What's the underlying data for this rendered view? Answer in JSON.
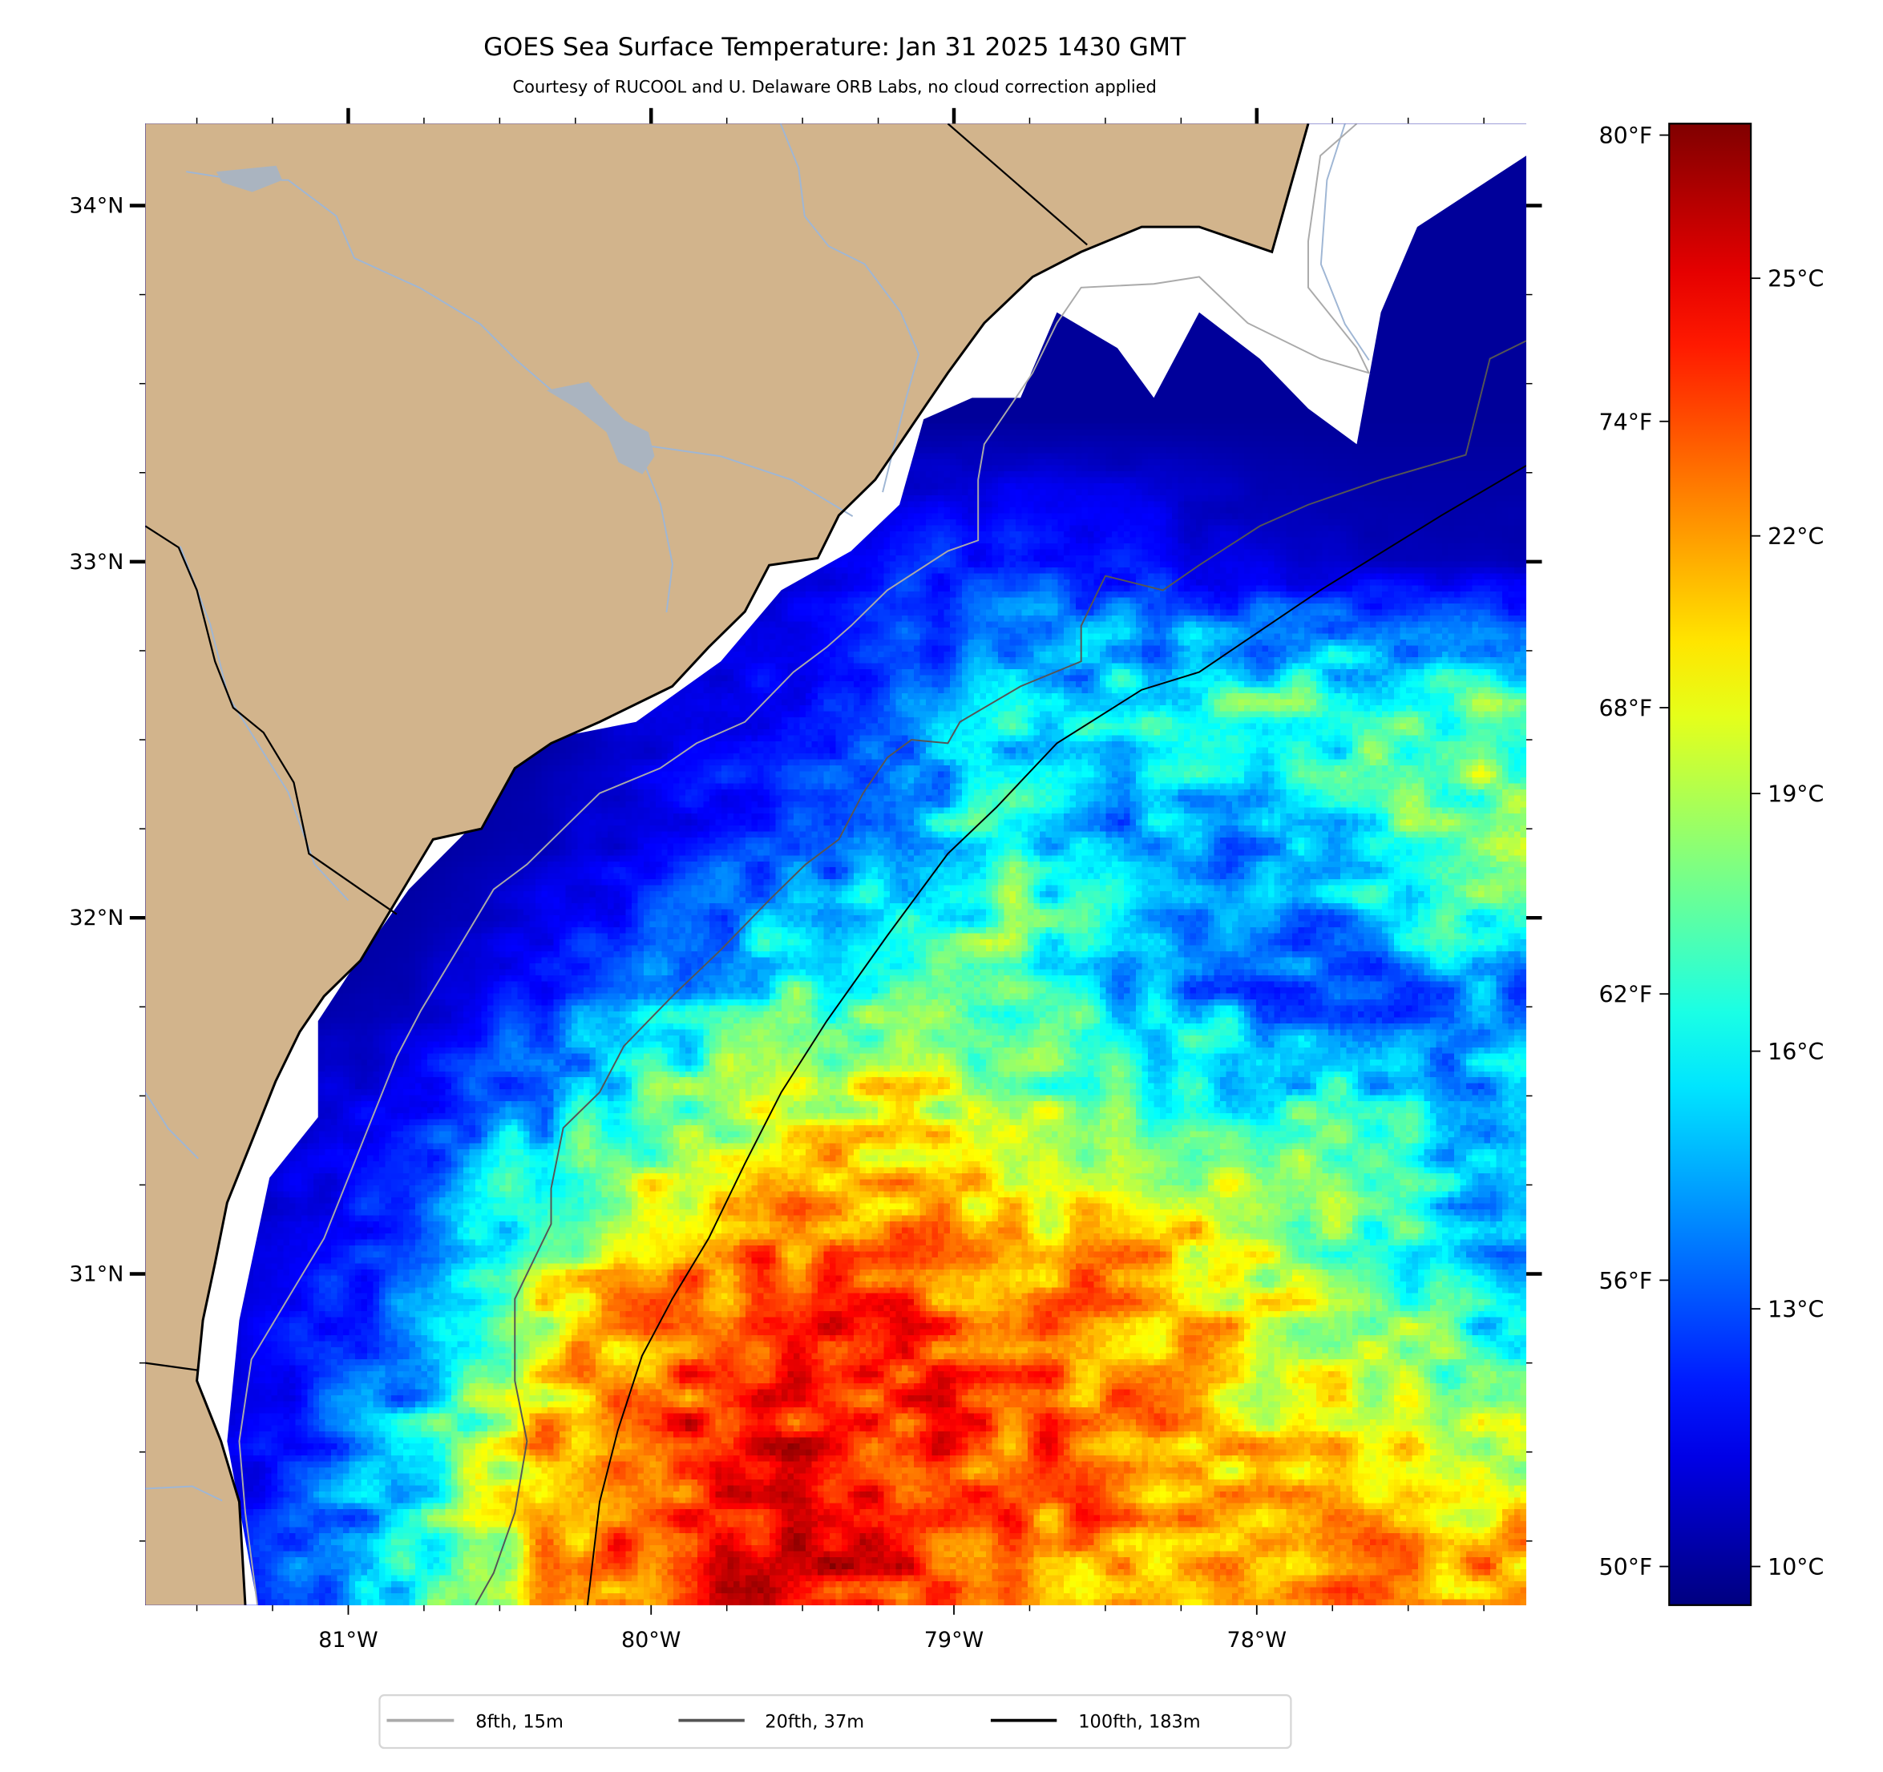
{
  "chart_data": {
    "type": "heatmap",
    "title": "GOES Sea Surface Temperature: Jan 31 2025 1430 GMT",
    "subtitle": "Courtesy of RUCOOL and U. Delaware ORB Labs, no cloud correction applied",
    "xlim": [
      -81.67,
      -77.11
    ],
    "ylim": [
      30.07,
      34.23
    ],
    "x_ticks": [
      {
        "value": -81,
        "label": "81°W"
      },
      {
        "value": -80,
        "label": "80°W"
      },
      {
        "value": -79,
        "label": "79°W"
      },
      {
        "value": -78,
        "label": "78°W"
      }
    ],
    "y_ticks": [
      {
        "value": 34,
        "label": "34°N"
      },
      {
        "value": 33,
        "label": "33°N"
      },
      {
        "value": 32,
        "label": "32°N"
      },
      {
        "value": 31,
        "label": "31°N"
      }
    ],
    "colorbar": {
      "colormap": "jet",
      "range_c": [
        9.55,
        26.8
      ],
      "ticks_f": [
        {
          "value": 80,
          "label": "80°F"
        },
        {
          "value": 74,
          "label": "74°F"
        },
        {
          "value": 68,
          "label": "68°F"
        },
        {
          "value": 62,
          "label": "62°F"
        },
        {
          "value": 56,
          "label": "56°F"
        },
        {
          "value": 50,
          "label": "50°F"
        }
      ],
      "ticks_c": [
        {
          "value": 25,
          "label": "25°C"
        },
        {
          "value": 22,
          "label": "22°C"
        },
        {
          "value": 19,
          "label": "19°C"
        },
        {
          "value": 16,
          "label": "16°C"
        },
        {
          "value": 13,
          "label": "13°C"
        },
        {
          "value": 10,
          "label": "10°C"
        }
      ]
    },
    "grid": {
      "lons": [
        -81.6,
        -81.2,
        -80.8,
        -80.4,
        -80.0,
        -79.6,
        -79.2,
        -78.8,
        -78.4,
        -78.0,
        -77.6,
        -77.2
      ],
      "lats": [
        34.2,
        33.8,
        33.4,
        33.0,
        32.6,
        32.2,
        31.8,
        31.4,
        31.0,
        30.6,
        30.2
      ],
      "sst_c": [
        [
          10,
          10,
          10,
          10,
          10,
          10,
          10,
          10,
          10,
          10,
          10,
          10
        ],
        [
          10,
          10,
          10,
          10,
          10,
          10,
          10,
          10,
          10,
          10,
          10,
          10
        ],
        [
          10,
          10,
          10,
          10,
          10,
          10,
          10,
          10,
          10,
          10,
          10,
          10
        ],
        [
          10,
          10,
          10,
          10,
          10,
          10.5,
          12,
          12.5,
          12,
          11,
          10.5,
          10.5
        ],
        [
          10,
          10,
          10,
          10,
          11,
          12,
          13,
          15,
          16.5,
          17,
          17,
          17.5
        ],
        [
          10,
          10,
          10,
          10.5,
          11.5,
          13,
          15,
          17,
          14,
          14,
          17,
          19
        ],
        [
          10,
          10,
          10.5,
          12,
          14,
          16.5,
          17.5,
          18,
          15,
          13.5,
          13,
          14
        ],
        [
          10,
          11,
          12,
          15,
          18,
          20,
          21,
          19,
          18,
          17.5,
          17,
          15
        ],
        [
          10,
          11.5,
          13,
          19,
          22,
          23.5,
          23,
          22,
          22,
          20,
          18,
          14
        ],
        [
          10,
          12,
          15,
          21,
          23.5,
          24.5,
          24,
          23.5,
          22,
          21,
          20,
          18
        ],
        [
          10,
          13,
          16,
          21,
          23.5,
          25,
          24,
          23,
          22,
          21.5,
          22,
          22
        ]
      ]
    },
    "land_polygon": [
      [
        -77.83,
        34.23
      ],
      [
        -77.95,
        33.87
      ],
      [
        -78.19,
        33.94
      ],
      [
        -78.38,
        33.94
      ],
      [
        -78.58,
        33.87
      ],
      [
        -78.74,
        33.8
      ],
      [
        -78.9,
        33.67
      ],
      [
        -79.02,
        33.53
      ],
      [
        -79.1,
        33.43
      ],
      [
        -79.18,
        33.33
      ],
      [
        -79.26,
        33.23
      ],
      [
        -79.38,
        33.13
      ],
      [
        -79.45,
        33.01
      ],
      [
        -79.61,
        32.99
      ],
      [
        -79.69,
        32.86
      ],
      [
        -79.81,
        32.76
      ],
      [
        -79.93,
        32.65
      ],
      [
        -80.17,
        32.55
      ],
      [
        -80.33,
        32.49
      ],
      [
        -80.45,
        32.42
      ],
      [
        -80.56,
        32.25
      ],
      [
        -80.72,
        32.22
      ],
      [
        -80.84,
        32.05
      ],
      [
        -80.96,
        31.88
      ],
      [
        -81.08,
        31.78
      ],
      [
        -81.16,
        31.68
      ],
      [
        -81.24,
        31.54
      ],
      [
        -81.32,
        31.37
      ],
      [
        -81.4,
        31.2
      ],
      [
        -81.44,
        31.03
      ],
      [
        -81.48,
        30.87
      ],
      [
        -81.5,
        30.7
      ],
      [
        -81.42,
        30.53
      ],
      [
        -81.36,
        30.36
      ],
      [
        -81.34,
        30.07
      ],
      [
        -81.67,
        30.07
      ],
      [
        -81.67,
        34.23
      ]
    ],
    "cloud_polygon": [
      [
        -81.3,
        30.07
      ],
      [
        -81.4,
        30.53
      ],
      [
        -81.36,
        30.87
      ],
      [
        -81.26,
        31.27
      ],
      [
        -81.1,
        31.44
      ],
      [
        -81.1,
        31.71
      ],
      [
        -81.0,
        31.84
      ],
      [
        -80.8,
        32.08
      ],
      [
        -80.6,
        32.25
      ],
      [
        -80.41,
        32.49
      ],
      [
        -80.05,
        32.55
      ],
      [
        -79.77,
        32.72
      ],
      [
        -79.57,
        32.92
      ],
      [
        -79.34,
        33.03
      ],
      [
        -79.18,
        33.16
      ],
      [
        -79.1,
        33.4
      ],
      [
        -78.94,
        33.46
      ],
      [
        -78.78,
        33.46
      ],
      [
        -78.66,
        33.7
      ],
      [
        -78.46,
        33.6
      ],
      [
        -78.34,
        33.46
      ],
      [
        -78.19,
        33.7
      ],
      [
        -77.99,
        33.57
      ],
      [
        -77.83,
        33.43
      ],
      [
        -77.67,
        33.33
      ],
      [
        -77.59,
        33.7
      ],
      [
        -77.47,
        33.94
      ],
      [
        -77.11,
        34.14
      ],
      [
        -77.11,
        34.23
      ],
      [
        -81.67,
        34.23
      ],
      [
        -81.67,
        30.07
      ]
    ],
    "state_borders": [
      [
        [
          -79.02,
          34.23
        ],
        [
          -78.56,
          33.89
        ]
      ],
      [
        [
          -81.67,
          33.1
        ],
        [
          -81.56,
          33.04
        ],
        [
          -81.5,
          32.92
        ],
        [
          -81.44,
          32.72
        ],
        [
          -81.38,
          32.59
        ],
        [
          -81.28,
          32.52
        ],
        [
          -81.18,
          32.38
        ],
        [
          -81.13,
          32.18
        ],
        [
          -80.96,
          32.08
        ],
        [
          -80.84,
          32.01
        ]
      ],
      [
        [
          -81.67,
          30.75
        ],
        [
          -81.5,
          30.73
        ]
      ]
    ],
    "legend": [
      {
        "label": "8fth, 15m",
        "color": "#aaaaaa"
      },
      {
        "label": "20fth, 37m",
        "color": "#555555"
      },
      {
        "label": "100fth, 183m",
        "color": "#000000"
      }
    ],
    "isobaths": [
      {
        "name": "8fth, 15m",
        "color": "#aaaaaa",
        "points": [
          [
            -77.67,
            34.23
          ],
          [
            -77.79,
            34.14
          ],
          [
            -77.83,
            33.9
          ],
          [
            -77.83,
            33.77
          ],
          [
            -77.67,
            33.6
          ],
          [
            -77.63,
            33.53
          ],
          [
            -77.79,
            33.57
          ],
          [
            -78.03,
            33.67
          ],
          [
            -78.19,
            33.8
          ],
          [
            -78.34,
            33.78
          ],
          [
            -78.58,
            33.77
          ],
          [
            -78.66,
            33.67
          ],
          [
            -78.74,
            33.53
          ],
          [
            -78.82,
            33.43
          ],
          [
            -78.9,
            33.33
          ],
          [
            -78.92,
            33.23
          ],
          [
            -78.92,
            33.06
          ],
          [
            -79.02,
            33.03
          ],
          [
            -79.22,
            32.92
          ],
          [
            -79.34,
            32.82
          ],
          [
            -79.42,
            32.76
          ],
          [
            -79.53,
            32.69
          ],
          [
            -79.69,
            32.55
          ],
          [
            -79.85,
            32.49
          ],
          [
            -79.97,
            32.42
          ],
          [
            -80.17,
            32.35
          ],
          [
            -80.29,
            32.25
          ],
          [
            -80.41,
            32.15
          ],
          [
            -80.52,
            32.08
          ],
          [
            -80.64,
            31.91
          ],
          [
            -80.76,
            31.74
          ],
          [
            -80.84,
            31.61
          ],
          [
            -80.92,
            31.44
          ],
          [
            -81.0,
            31.27
          ],
          [
            -81.08,
            31.1
          ],
          [
            -81.2,
            30.93
          ],
          [
            -81.32,
            30.76
          ],
          [
            -81.36,
            30.53
          ],
          [
            -81.34,
            30.33
          ],
          [
            -81.3,
            30.07
          ]
        ]
      },
      {
        "name": "20fth, 37m",
        "color": "#555555",
        "points": [
          [
            -77.11,
            33.62
          ],
          [
            -77.23,
            33.57
          ],
          [
            -77.31,
            33.3
          ],
          [
            -77.59,
            33.23
          ],
          [
            -77.83,
            33.16
          ],
          [
            -77.99,
            33.1
          ],
          [
            -78.19,
            32.99
          ],
          [
            -78.31,
            32.92
          ],
          [
            -78.5,
            32.96
          ],
          [
            -78.58,
            32.82
          ],
          [
            -78.58,
            32.72
          ],
          [
            -78.78,
            32.65
          ],
          [
            -78.98,
            32.55
          ],
          [
            -79.02,
            32.49
          ],
          [
            -79.14,
            32.5
          ],
          [
            -79.22,
            32.45
          ],
          [
            -79.3,
            32.35
          ],
          [
            -79.38,
            32.22
          ],
          [
            -79.49,
            32.15
          ],
          [
            -79.61,
            32.05
          ],
          [
            -79.77,
            31.91
          ],
          [
            -79.93,
            31.78
          ],
          [
            -80.09,
            31.64
          ],
          [
            -80.17,
            31.51
          ],
          [
            -80.29,
            31.41
          ],
          [
            -80.33,
            31.24
          ],
          [
            -80.33,
            31.14
          ],
          [
            -80.45,
            30.93
          ],
          [
            -80.45,
            30.7
          ],
          [
            -80.41,
            30.53
          ],
          [
            -80.45,
            30.33
          ],
          [
            -80.52,
            30.16
          ],
          [
            -80.58,
            30.07
          ]
        ]
      },
      {
        "name": "100fth, 183m",
        "color": "#000000",
        "points": [
          [
            -77.11,
            33.27
          ],
          [
            -77.39,
            33.13
          ],
          [
            -77.79,
            32.92
          ],
          [
            -78.19,
            32.69
          ],
          [
            -78.38,
            32.64
          ],
          [
            -78.66,
            32.49
          ],
          [
            -78.86,
            32.31
          ],
          [
            -79.02,
            32.18
          ],
          [
            -79.22,
            31.95
          ],
          [
            -79.42,
            31.71
          ],
          [
            -79.57,
            31.51
          ],
          [
            -79.69,
            31.31
          ],
          [
            -79.81,
            31.1
          ],
          [
            -79.93,
            30.93
          ],
          [
            -80.03,
            30.77
          ],
          [
            -80.11,
            30.56
          ],
          [
            -80.17,
            30.36
          ],
          [
            -80.21,
            30.07
          ]
        ]
      }
    ],
    "colors": {
      "land": "#d2b48c",
      "cloud": "#ffffff",
      "river": "#9fb6d4"
    }
  }
}
